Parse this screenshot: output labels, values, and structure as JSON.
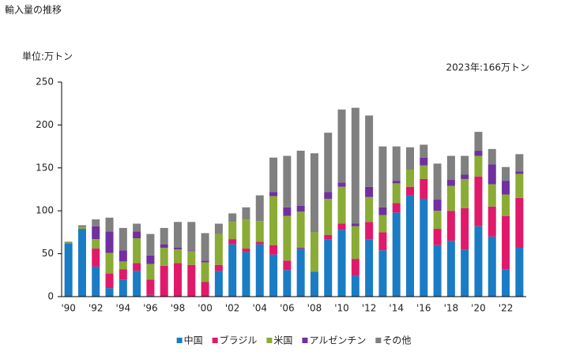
{
  "chart_data": {
    "type": "bar",
    "stacked": true,
    "title": "輸入量の推移",
    "y_axis_label": "単位:万トン",
    "note": "2023年:166万トン",
    "categories": [
      "'90",
      null,
      "'92",
      null,
      "'94",
      null,
      "'96",
      null,
      "'98",
      null,
      "'00",
      null,
      "'02",
      null,
      "'04",
      null,
      "'06",
      null,
      "'08",
      null,
      "'10",
      null,
      "'12",
      null,
      "'14",
      null,
      "'16",
      null,
      "'18",
      null,
      "'20",
      null,
      "'22",
      null
    ],
    "series": [
      {
        "name": "中国",
        "color": "#1a7cc4",
        "values": [
          62,
          79,
          35,
          10,
          20,
          30,
          2,
          0,
          0,
          0,
          0,
          30,
          61,
          52,
          61,
          49,
          31,
          56,
          29,
          67,
          78,
          24,
          67,
          54,
          98,
          118,
          114,
          60,
          65,
          55,
          82,
          70,
          32,
          57
        ]
      },
      {
        "name": "ブラジル",
        "color": "#e0196b",
        "values": [
          0,
          0,
          21,
          17,
          12,
          9,
          18,
          36,
          39,
          37,
          17,
          7,
          6,
          4,
          3,
          11,
          11,
          1,
          0,
          5,
          7,
          20,
          20,
          21,
          11,
          10,
          23,
          19,
          35,
          48,
          58,
          35,
          62,
          58
        ]
      },
      {
        "name": "米国",
        "color": "#8aab35",
        "values": [
          1,
          3,
          11,
          24,
          9,
          29,
          18,
          21,
          16,
          16,
          23,
          36,
          20,
          34,
          24,
          57,
          52,
          42,
          46,
          42,
          43,
          38,
          29,
          20,
          23,
          20,
          16,
          21,
          29,
          34,
          24,
          26,
          25,
          28
        ]
      },
      {
        "name": "アルゼンチン",
        "color": "#7030a0",
        "values": [
          0,
          1,
          15,
          25,
          13,
          8,
          10,
          4,
          2,
          1,
          2,
          0,
          0,
          0,
          0,
          5,
          10,
          7,
          0,
          8,
          5,
          3,
          12,
          9,
          3,
          0,
          9,
          13,
          7,
          5,
          6,
          23,
          16,
          3
        ]
      },
      {
        "name": "その他",
        "color": "#808080",
        "values": [
          1,
          0,
          8,
          16,
          26,
          9,
          25,
          19,
          30,
          33,
          32,
          12,
          10,
          14,
          30,
          40,
          60,
          64,
          92,
          69,
          85,
          135,
          83,
          71,
          40,
          26,
          15,
          42,
          28,
          22,
          22,
          18,
          16,
          20
        ]
      }
    ],
    "ylim": [
      0,
      250
    ],
    "yticks": [
      0,
      50,
      100,
      150,
      200,
      250
    ],
    "grid": false,
    "legend": "bottom"
  }
}
